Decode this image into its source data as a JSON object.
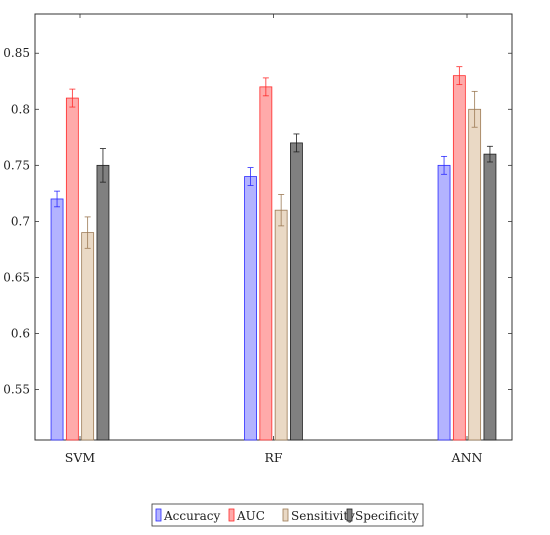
{
  "chart_data": {
    "type": "bar",
    "title": "",
    "xlabel": "",
    "ylabel": "",
    "categories": [
      "SVM",
      "RF",
      "ANN"
    ],
    "ylim": [
      0.505,
      0.885
    ],
    "yticks": [
      "0.55",
      "0.6",
      "0.65",
      "0.7",
      "0.75",
      "0.8",
      "0.85"
    ],
    "grid": false,
    "legend_position": "bottom",
    "series": [
      {
        "name": "Accuracy",
        "values": [
          0.72,
          0.74,
          0.75
        ],
        "errors": [
          0.007,
          0.008,
          0.008
        ],
        "color": "#b3b3ff",
        "edge": "#2b2bff"
      },
      {
        "name": "AUC",
        "values": [
          0.81,
          0.82,
          0.83
        ],
        "errors": [
          0.008,
          0.008,
          0.008
        ],
        "color": "#ffaaaa",
        "edge": "#ff2b2b"
      },
      {
        "name": "Sensitivity",
        "values": [
          0.69,
          0.71,
          0.8
        ],
        "errors": [
          0.014,
          0.014,
          0.016
        ],
        "color": "#ead9c5",
        "edge": "#9c7a55"
      },
      {
        "name": "Specificity",
        "values": [
          0.75,
          0.77,
          0.76
        ],
        "errors": [
          0.015,
          0.008,
          0.007
        ],
        "color": "#808080",
        "edge": "#202020"
      }
    ]
  }
}
